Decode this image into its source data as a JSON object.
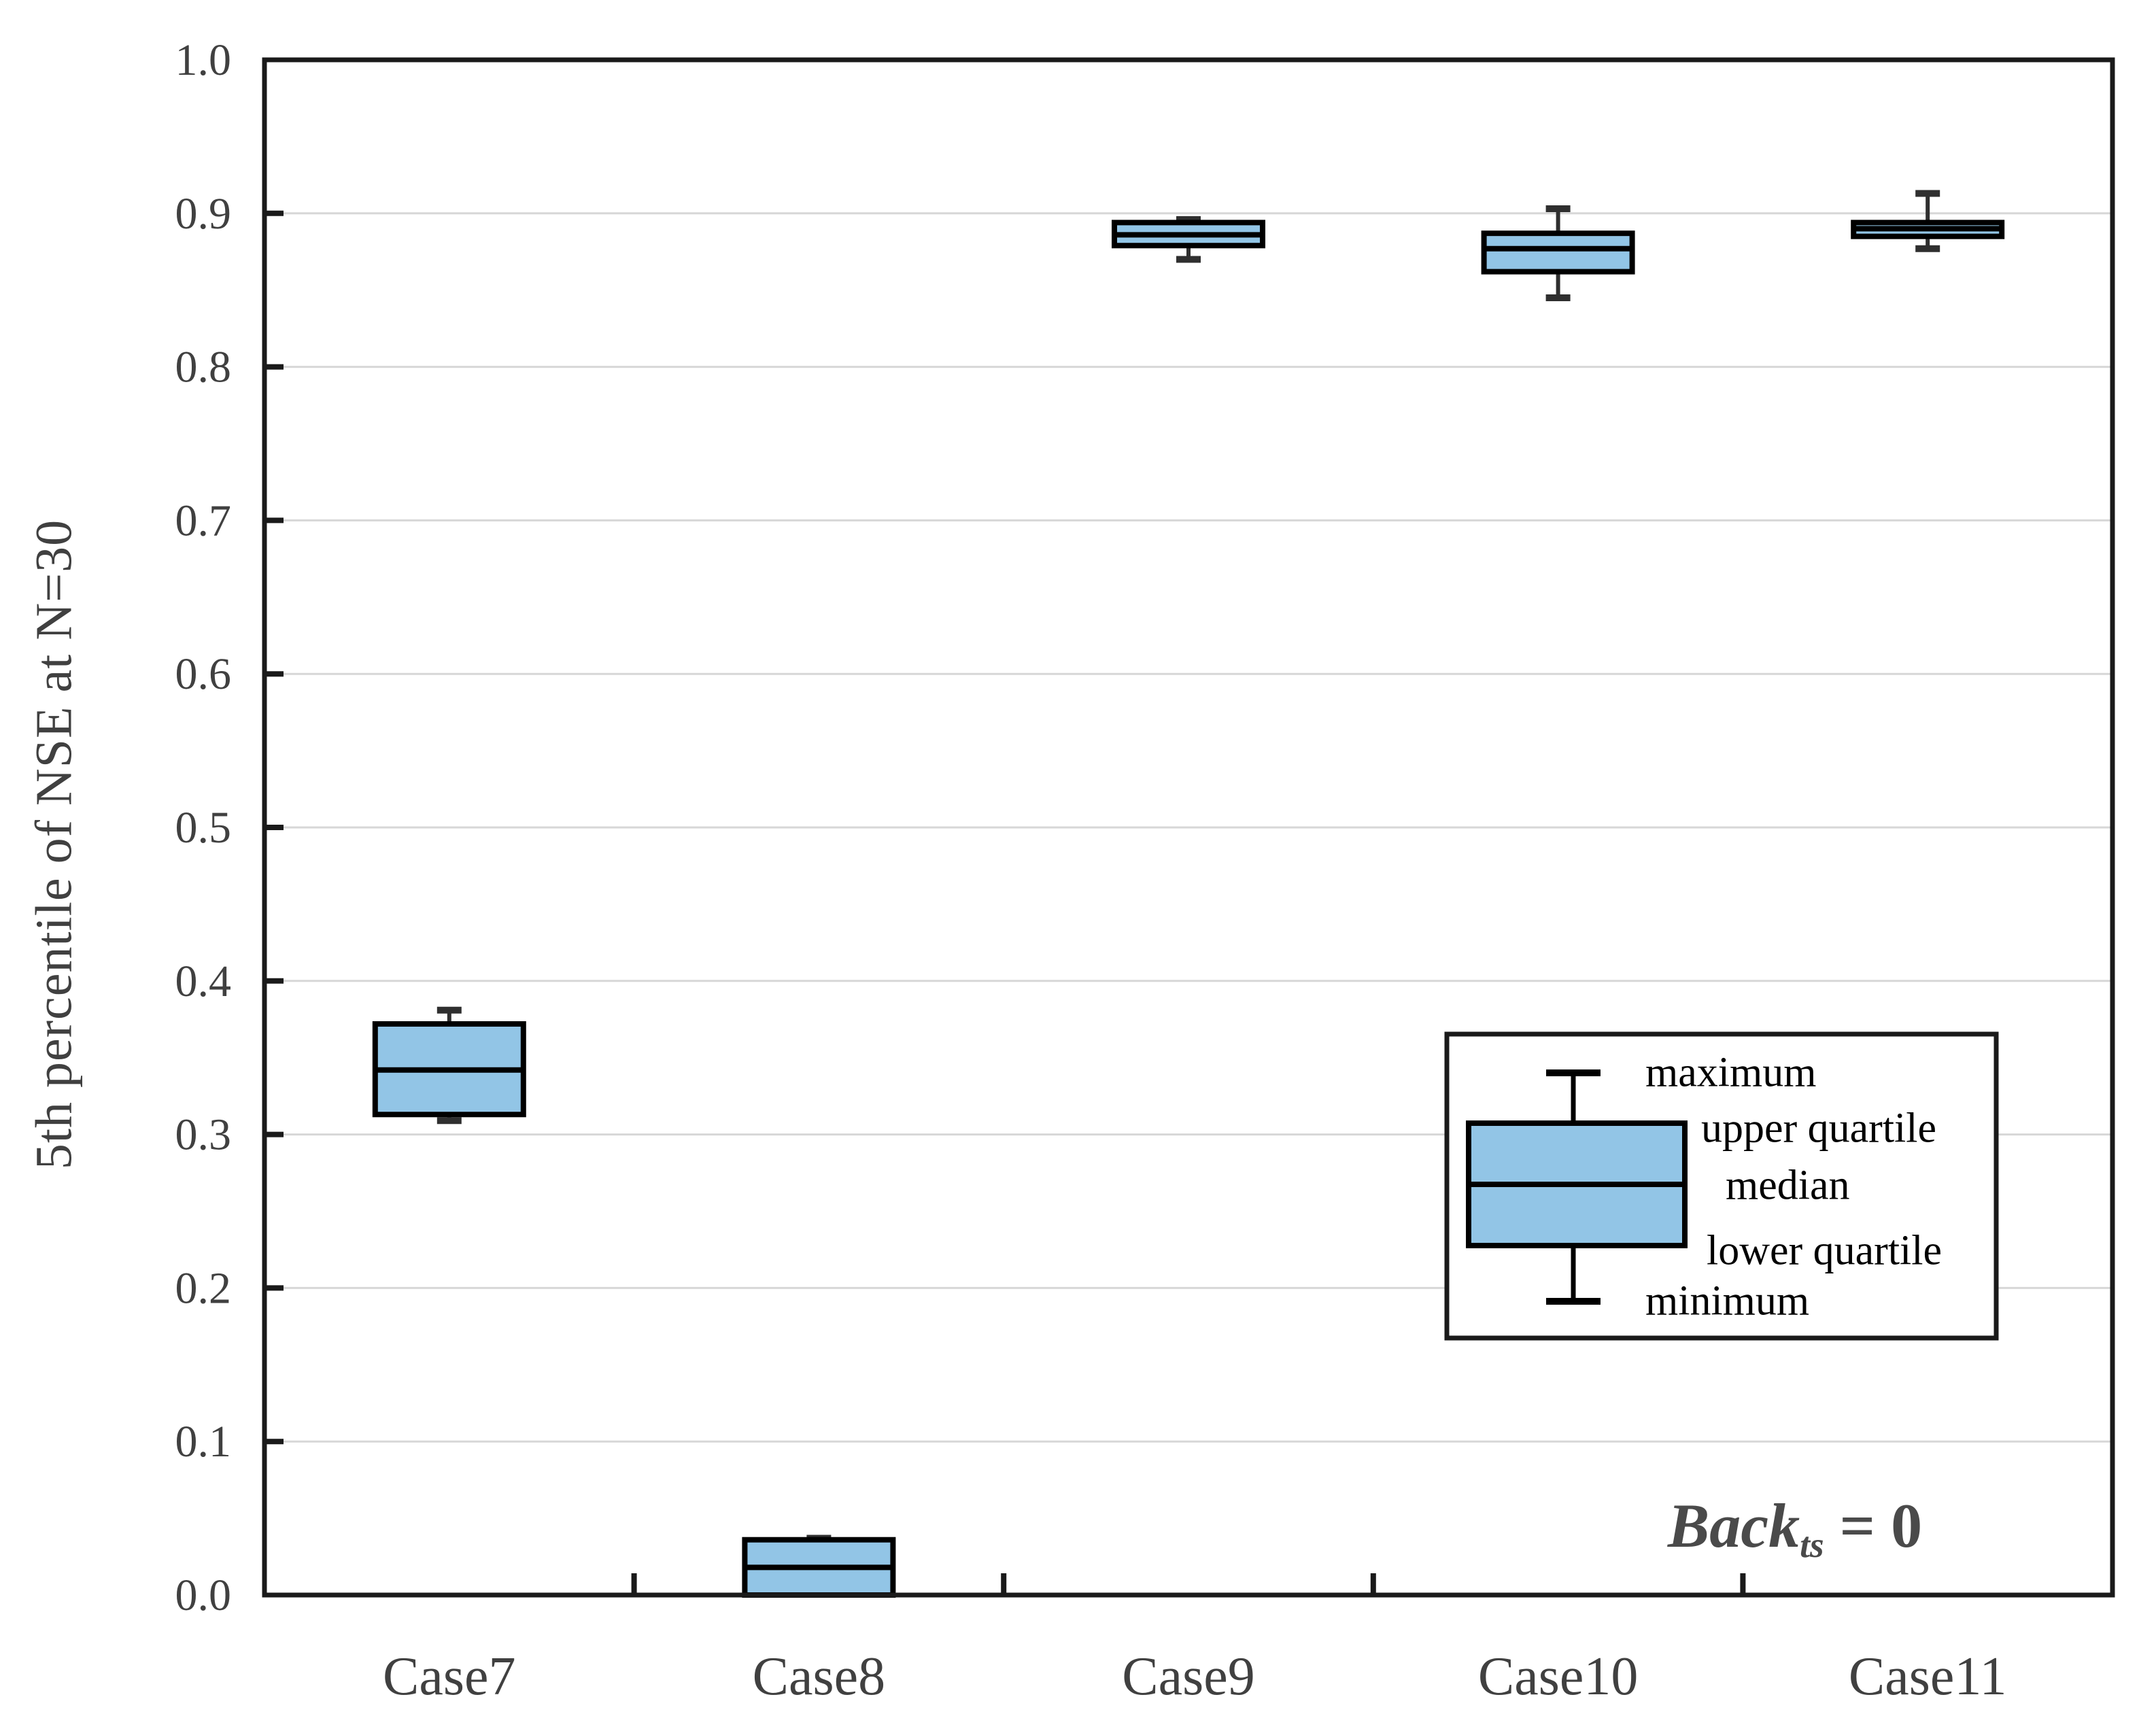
{
  "figure": {
    "background": "#ffffff"
  },
  "annotation": {
    "word": "Back",
    "subscript": "ts",
    "rest": " = 0"
  },
  "chart_data": {
    "type": "boxplot",
    "title": "",
    "xlabel": "",
    "ylabel": "5th percentile of NSE at N=30",
    "ylim": [
      0.0,
      1.0
    ],
    "yticks": [
      "0.0",
      "0.1",
      "0.2",
      "0.3",
      "0.4",
      "0.5",
      "0.6",
      "0.7",
      "0.8",
      "0.9",
      "1.0"
    ],
    "grid": "horizontal gridlines every 0.1",
    "categories": [
      "Case7",
      "Case8",
      "Case9",
      "Case10",
      "Case11"
    ],
    "series": [
      {
        "name": "Case7",
        "min": 0.309,
        "q1": 0.313,
        "median": 0.342,
        "q3": 0.372,
        "max": 0.381
      },
      {
        "name": "Case8",
        "min": 0.0,
        "q1": 0.0,
        "median": 0.018,
        "q3": 0.036,
        "max": 0.037
      },
      {
        "name": "Case9",
        "min": 0.87,
        "q1": 0.879,
        "median": 0.886,
        "q3": 0.894,
        "max": 0.896
      },
      {
        "name": "Case10",
        "min": 0.845,
        "q1": 0.862,
        "median": 0.877,
        "q3": 0.887,
        "max": 0.903
      },
      {
        "name": "Case11",
        "min": 0.877,
        "q1": 0.885,
        "median": 0.89,
        "q3": 0.894,
        "max": 0.913
      }
    ],
    "legend_items": [
      "maximum",
      "upper quartile",
      "median",
      "lower quartile",
      "minimum"
    ],
    "legend_position": "lower right",
    "annotation_text": "Back_ts = 0",
    "colors": {
      "box_fill": "#92C5E6",
      "box_border": "#000000",
      "whisker": "#2f2f2f",
      "gridline": "#d7d7d7",
      "frame": "#1a1a1a",
      "tick_text": "#404040",
      "annotation_text": "#4a4a4a"
    }
  }
}
